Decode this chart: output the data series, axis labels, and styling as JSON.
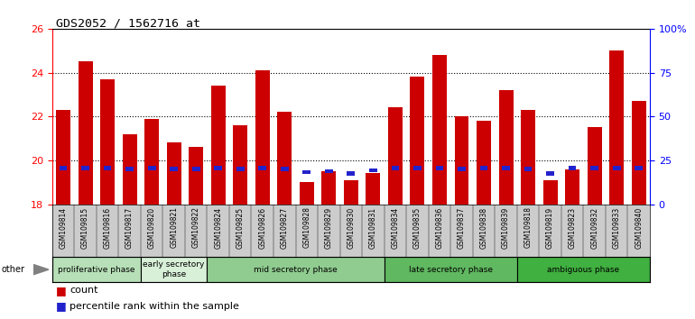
{
  "title": "GDS2052 / 1562716_at",
  "samples": [
    "GSM109814",
    "GSM109815",
    "GSM109816",
    "GSM109817",
    "GSM109820",
    "GSM109821",
    "GSM109822",
    "GSM109824",
    "GSM109825",
    "GSM109826",
    "GSM109827",
    "GSM109828",
    "GSM109829",
    "GSM109830",
    "GSM109831",
    "GSM109834",
    "GSM109835",
    "GSM109836",
    "GSM109837",
    "GSM109838",
    "GSM109839",
    "GSM109818",
    "GSM109819",
    "GSM109823",
    "GSM109832",
    "GSM109833",
    "GSM109840"
  ],
  "count_values": [
    22.3,
    24.5,
    23.7,
    21.2,
    21.9,
    20.8,
    20.6,
    23.4,
    21.6,
    24.1,
    22.2,
    19.0,
    19.5,
    19.1,
    19.4,
    22.4,
    23.8,
    24.8,
    22.0,
    21.8,
    23.2,
    22.3,
    19.1,
    19.6,
    21.5,
    25.0,
    22.7
  ],
  "percentile_values": [
    19.65,
    19.65,
    19.65,
    19.6,
    19.65,
    19.6,
    19.6,
    19.65,
    19.6,
    19.65,
    19.6,
    19.45,
    19.5,
    19.4,
    19.55,
    19.65,
    19.65,
    19.65,
    19.6,
    19.65,
    19.65,
    19.6,
    19.4,
    19.65,
    19.65,
    19.65,
    19.65
  ],
  "groups": [
    {
      "name": "proliferative phase",
      "start": 0,
      "end": 3,
      "color": "#b8e0b8"
    },
    {
      "name": "early secretory\nphase",
      "start": 4,
      "end": 6,
      "color": "#d8f0d8"
    },
    {
      "name": "mid secretory phase",
      "start": 7,
      "end": 14,
      "color": "#90cc90"
    },
    {
      "name": "late secretory phase",
      "start": 15,
      "end": 20,
      "color": "#60b860"
    },
    {
      "name": "ambiguous phase",
      "start": 21,
      "end": 26,
      "color": "#40b040"
    }
  ],
  "ylim_left": [
    18,
    26
  ],
  "ylim_right": [
    0,
    100
  ],
  "yticks_left": [
    18,
    20,
    22,
    24,
    26
  ],
  "ytick_right_labels": [
    "0",
    "25",
    "50",
    "75",
    "100%"
  ],
  "yticks_right": [
    0,
    25,
    50,
    75,
    100
  ],
  "bar_color": "#cc0000",
  "percentile_color": "#2222cc",
  "baseline": 18,
  "bar_width": 0.65,
  "plot_bg_color": "#ffffff",
  "tick_bg_color": "#cccccc"
}
